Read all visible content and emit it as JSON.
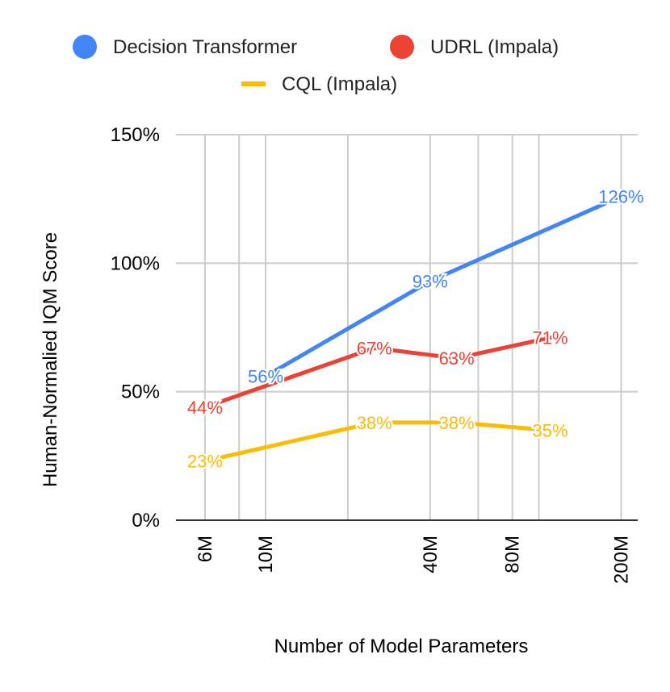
{
  "chart_data": {
    "type": "line",
    "title": "",
    "xlabel": "Number of Model Parameters",
    "ylabel": "Human-Normalied IQM Score",
    "x_scale": "log",
    "x_ticks": [
      {
        "value": 6,
        "label": "6M"
      },
      {
        "value": 10,
        "label": "10M"
      },
      {
        "value": 40,
        "label": "40M"
      },
      {
        "value": 80,
        "label": "80M"
      },
      {
        "value": 200,
        "label": "200M"
      }
    ],
    "x_minor_gridlines": [
      8,
      20,
      60,
      100
    ],
    "x_range": [
      4.7,
      230
    ],
    "y_ticks": [
      {
        "value": 0,
        "label": "0%"
      },
      {
        "value": 50,
        "label": "50%"
      },
      {
        "value": 100,
        "label": "100%"
      },
      {
        "value": 150,
        "label": "150%"
      }
    ],
    "ylim": [
      0,
      150
    ],
    "grid": true,
    "legend_position": "top",
    "series": [
      {
        "name": "Decision Transformer",
        "color": "#4285F4",
        "legend_marker": "circle",
        "points": [
          {
            "x": 10,
            "y": 56,
            "label": "56%"
          },
          {
            "x": 40,
            "y": 93,
            "label": "93%"
          },
          {
            "x": 200,
            "y": 126,
            "label": "126%"
          }
        ]
      },
      {
        "name": "UDRL (Impala)",
        "color": "#EA4335",
        "legend_marker": "circle",
        "points": [
          {
            "x": 6,
            "y": 44,
            "label": "44%"
          },
          {
            "x": 25,
            "y": 67,
            "label": "67%"
          },
          {
            "x": 50,
            "y": 63,
            "label": "63%"
          },
          {
            "x": 110,
            "y": 71,
            "label": "71%"
          }
        ]
      },
      {
        "name": "CQL (Impala)",
        "color": "#FBBC04",
        "legend_marker": "line",
        "points": [
          {
            "x": 6,
            "y": 23,
            "label": "23%"
          },
          {
            "x": 25,
            "y": 38,
            "label": "38%"
          },
          {
            "x": 50,
            "y": 38,
            "label": "38%"
          },
          {
            "x": 110,
            "y": 35,
            "label": "35%"
          }
        ]
      }
    ]
  }
}
